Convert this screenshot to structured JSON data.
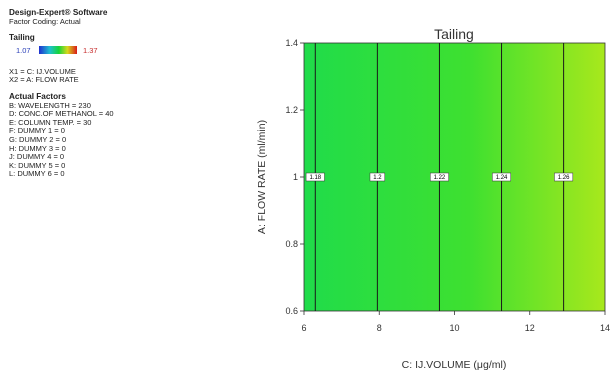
{
  "sidebar": {
    "app_title": "Design-Expert® Software",
    "coding": "Factor Coding: Actual",
    "response_heading": "Tailing",
    "scale_low": "1.07",
    "scale_high": "1.37",
    "x1_line": "X1 = C: IJ.VOLUME",
    "x2_line": "X2 = A: FLOW RATE",
    "actual_heading": "Actual Factors",
    "actual_factors": [
      "B: WAVELENGTH = 230",
      "D: CONC.OF METHANOL = 40",
      "E: COLUMN TEMP. = 30",
      "F: DUMMY 1 = 0",
      "G: DUMMY 2 = 0",
      "H: DUMMY 3 = 0",
      "J: DUMMY 4 = 0",
      "K: DUMMY 5 = 0",
      "L: DUMMY 6 = 0"
    ]
  },
  "colors": {
    "low": "#1f2fd0",
    "high": "#d91a1a",
    "plot_left": "#20dc4a",
    "plot_mid": "#3ee030",
    "plot_right": "#a8e81c"
  },
  "chart_data": {
    "type": "heatmap",
    "title": "Tailing",
    "xlabel": "C: IJ.VOLUME (μg/ml)",
    "ylabel": "A: FLOW RATE (ml/min)",
    "xlim": [
      6,
      14
    ],
    "ylim": [
      0.6,
      1.4
    ],
    "xticks": [
      6,
      8,
      10,
      12,
      14
    ],
    "yticks": [
      0.6,
      0.8,
      1,
      1.2,
      1.4
    ],
    "x_tick_labels": [
      "6",
      "8",
      "10",
      "12",
      "14"
    ],
    "y_tick_labels": [
      "0.6",
      "0.8",
      "1",
      "1.2",
      "1.4"
    ],
    "contours": [
      {
        "level": "1.18",
        "x": 6.3
      },
      {
        "level": "1.2",
        "x": 7.95
      },
      {
        "level": "1.22",
        "x": 9.6
      },
      {
        "level": "1.24",
        "x": 11.25
      },
      {
        "level": "1.26",
        "x": 12.9
      }
    ],
    "contour_label_y": 1.0
  }
}
